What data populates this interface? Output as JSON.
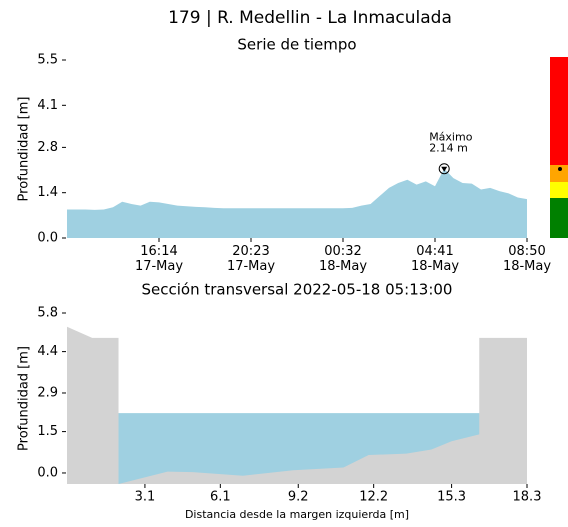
{
  "title": "179 | R. Medellin - La Inmaculada",
  "chart_data": [
    {
      "type": "area",
      "title": "Serie de tiempo",
      "ylabel": "Profundidad [m]",
      "color": "#9fd0e1",
      "categories": [
        null,
        null,
        null,
        null,
        null,
        null,
        null,
        null,
        null,
        null,
        "16:14\n17-May",
        null,
        null,
        null,
        null,
        null,
        null,
        null,
        null,
        null,
        "20:23\n17-May",
        null,
        null,
        null,
        null,
        null,
        null,
        null,
        null,
        null,
        "00:32\n18-May",
        null,
        null,
        null,
        null,
        null,
        null,
        null,
        null,
        null,
        "04:41\n18-May",
        null,
        null,
        null,
        null,
        null,
        null,
        null,
        null,
        null,
        "08:50\n18-May"
      ],
      "values": [
        0.88,
        0.88,
        0.88,
        0.87,
        0.88,
        0.95,
        1.12,
        1.05,
        1.0,
        1.12,
        1.1,
        1.05,
        1.0,
        0.98,
        0.96,
        0.95,
        0.93,
        0.92,
        0.92,
        0.92,
        0.92,
        0.92,
        0.92,
        0.92,
        0.92,
        0.92,
        0.92,
        0.92,
        0.92,
        0.92,
        0.92,
        0.93,
        1.0,
        1.05,
        1.3,
        1.55,
        1.7,
        1.8,
        1.65,
        1.75,
        1.6,
        2.14,
        1.85,
        1.7,
        1.68,
        1.5,
        1.55,
        1.45,
        1.38,
        1.25,
        1.2
      ],
      "ylim": [
        0,
        5.5
      ],
      "yticks": [
        {
          "value": 0,
          "label": "0.0"
        },
        1.4,
        2.8,
        4.1,
        5.5
      ],
      "annotation": {
        "index": 41,
        "text": "Máximo",
        "value_label": "2.14 m"
      }
    },
    {
      "type": "profile",
      "title": "Sección transversal 2022-05-18 05:13:00",
      "ylabel": "Profundidad [m]",
      "xlabel": "Distancia desde la margen izquierda [m]",
      "color": "#d3d3d3",
      "water_color": "#9fd0e1",
      "water_level": 2.17,
      "x": [
        0,
        1.0,
        2.05,
        2.05,
        4.0,
        5.0,
        7.0,
        9.0,
        11.0,
        12.0,
        13.5,
        14.5,
        15.3,
        16.4,
        16.4,
        18.3
      ],
      "values": [
        5.3,
        4.9,
        4.9,
        -0.4,
        0.05,
        0.03,
        -0.1,
        0.1,
        0.2,
        0.65,
        0.7,
        0.85,
        1.15,
        1.4,
        4.9,
        4.9
      ],
      "xlim": [
        0,
        18.3
      ],
      "ylim": [
        -0.4,
        5.8
      ],
      "xticks": [
        3.1,
        6.1,
        9.2,
        12.2,
        15.3,
        18.3
      ],
      "yticks": [
        {
          "value": 0,
          "label": "0.0"
        },
        1.5,
        2.9,
        4.4,
        5.8
      ]
    }
  ]
}
